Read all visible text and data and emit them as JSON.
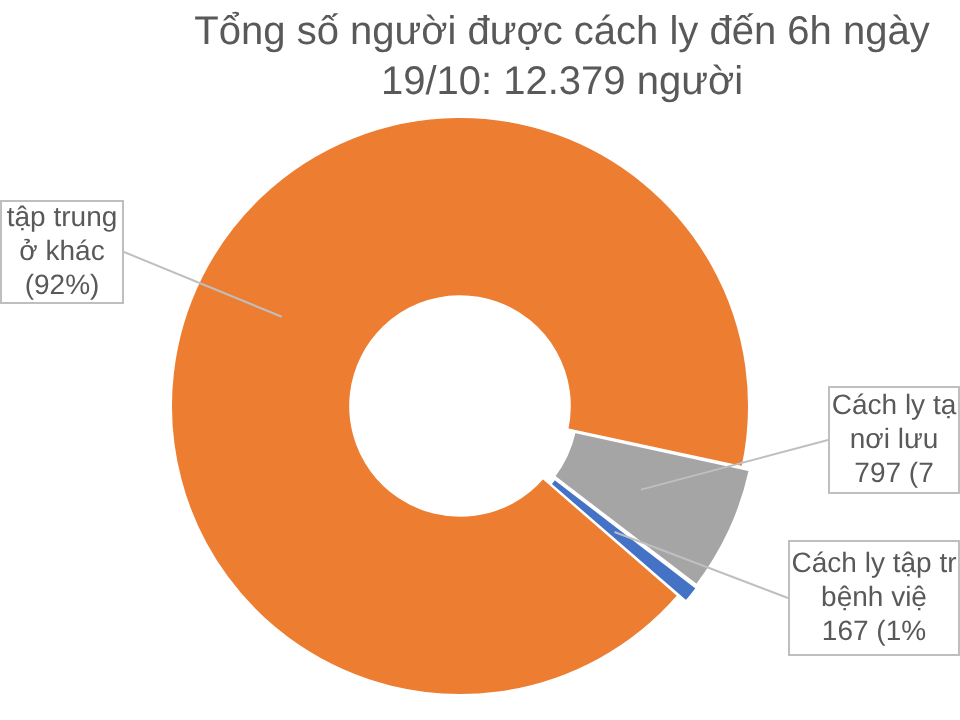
{
  "chart_data": {
    "type": "donut",
    "title": "Tổng số người được cách ly đến 6h ngày 19/10: 12.379 người",
    "categories": [
      "tập trung\nở khác",
      "Cách ly tạ\nnơi lưu",
      "Cách ly tập tr\nbệnh việ"
    ],
    "values": [
      92,
      7,
      1
    ],
    "colors": [
      "#ed7d31",
      "#a5a5a5",
      "#4472c4"
    ],
    "value_labels": [
      "(92%)",
      "797 (7",
      "167 (1%"
    ],
    "legend": false
  }
}
